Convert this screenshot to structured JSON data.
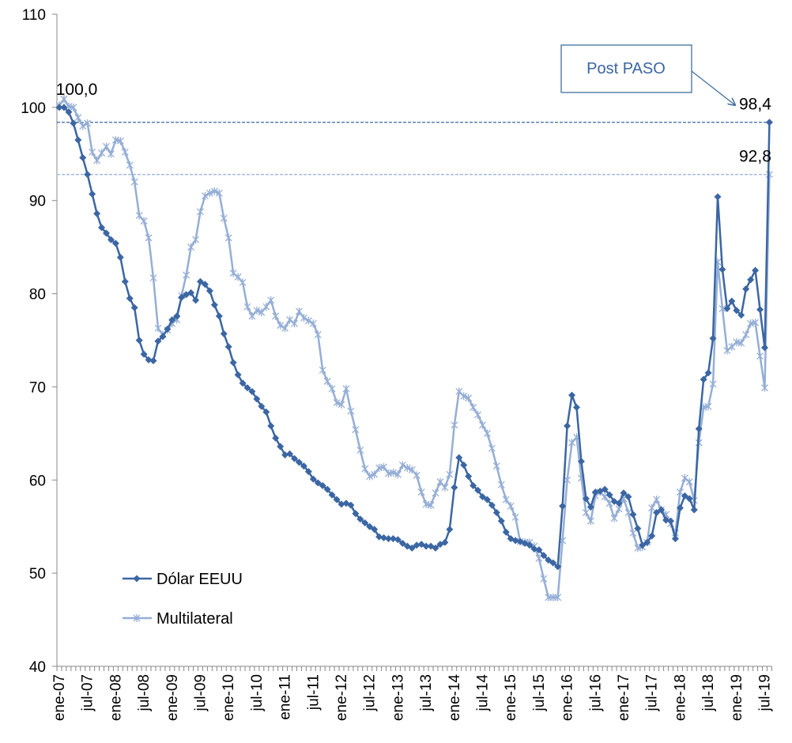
{
  "chart_data": {
    "type": "line",
    "annotation": "Post PASO",
    "categories": [
      "ene-07",
      null,
      null,
      null,
      null,
      null,
      "jul-07",
      null,
      null,
      null,
      null,
      null,
      "ene-08",
      null,
      null,
      null,
      null,
      null,
      "jul-08",
      null,
      null,
      null,
      null,
      null,
      "ene-09",
      null,
      null,
      null,
      null,
      null,
      "jul-09",
      null,
      null,
      null,
      null,
      null,
      "ene-10",
      null,
      null,
      null,
      null,
      null,
      "jul-10",
      null,
      null,
      null,
      null,
      null,
      "ene-11",
      null,
      null,
      null,
      null,
      null,
      "jul-11",
      null,
      null,
      null,
      null,
      null,
      "ene-12",
      null,
      null,
      null,
      null,
      null,
      "jul-12",
      null,
      null,
      null,
      null,
      null,
      "ene-13",
      null,
      null,
      null,
      null,
      null,
      "jul-13",
      null,
      null,
      null,
      null,
      null,
      "ene-14",
      null,
      null,
      null,
      null,
      null,
      "jul-14",
      null,
      null,
      null,
      null,
      null,
      "ene-15",
      null,
      null,
      null,
      null,
      null,
      "jul-15",
      null,
      null,
      null,
      null,
      null,
      "ene-16",
      null,
      null,
      null,
      null,
      null,
      "jul-16",
      null,
      null,
      null,
      null,
      null,
      "ene-17",
      null,
      null,
      null,
      null,
      null,
      "jul-17",
      null,
      null,
      null,
      null,
      null,
      "ene-18",
      null,
      null,
      null,
      null,
      null,
      "jul-18",
      null,
      null,
      null,
      null,
      null,
      "ene-19",
      null,
      null,
      null,
      null,
      null,
      "jul-19",
      null
    ],
    "series": [
      {
        "name": "Dólar EEUU",
        "color": "#3b66a3",
        "marker": "diamond",
        "values": [
          100.0,
          100.0,
          99.5,
          98.3,
          96.5,
          94.6,
          92.8,
          90.7,
          88.6,
          87.1,
          86.5,
          85.8,
          85.4,
          83.9,
          81.3,
          79.5,
          78.5,
          75.0,
          73.5,
          72.9,
          72.8,
          74.9,
          75.4,
          76.2,
          77.2,
          77.6,
          79.6,
          79.9,
          80.1,
          79.3,
          81.3,
          81.0,
          80.3,
          78.8,
          77.6,
          75.7,
          74.3,
          72.6,
          71.3,
          70.4,
          69.9,
          69.5,
          68.7,
          67.9,
          67.3,
          65.8,
          64.5,
          63.6,
          62.7,
          62.8,
          62.3,
          61.9,
          61.5,
          60.9,
          60.1,
          59.7,
          59.4,
          59.0,
          58.4,
          57.9,
          57.4,
          57.5,
          57.3,
          56.4,
          55.8,
          55.4,
          55.0,
          54.7,
          53.9,
          53.8,
          53.7,
          53.7,
          53.6,
          53.2,
          52.9,
          52.7,
          53.0,
          53.1,
          52.9,
          52.9,
          52.7,
          53.1,
          53.3,
          54.7,
          59.2,
          62.4,
          61.6,
          60.4,
          59.4,
          58.9,
          58.2,
          57.9,
          57.3,
          56.5,
          55.6,
          54.4,
          53.7,
          53.5,
          53.4,
          53.2,
          53.0,
          52.6,
          52.5,
          51.9,
          51.4,
          51.1,
          50.7,
          57.2,
          65.8,
          69.1,
          67.8,
          62.0,
          58.0,
          57.1,
          58.7,
          58.8,
          59.0,
          58.4,
          57.7,
          57.5,
          58.6,
          58.2,
          56.3,
          54.8,
          53.0,
          53.3,
          54.0,
          56.5,
          56.8,
          55.7,
          55.6,
          53.7,
          57.0,
          58.3,
          58.0,
          56.8,
          65.5,
          70.8,
          71.5,
          75.2,
          90.4,
          82.6,
          78.4,
          79.2,
          78.2,
          77.7,
          80.5,
          81.5,
          82.5,
          78.3,
          74.2,
          98.4
        ],
        "value_labels": {
          "0": "100,0",
          "151": "98,4"
        }
      },
      {
        "name": "Multilateral",
        "color": "#95aed6",
        "marker": "star",
        "values": [
          100.2,
          100.9,
          100.1,
          100.0,
          98.9,
          98.0,
          98.3,
          95.2,
          94.3,
          95.1,
          95.8,
          95.0,
          96.5,
          96.4,
          95.2,
          93.8,
          92.0,
          88.4,
          87.8,
          86.0,
          81.7,
          76.3,
          75.6,
          76.1,
          76.8,
          77.2,
          79.8,
          82.0,
          85.0,
          85.8,
          88.8,
          90.5,
          90.8,
          91.0,
          90.8,
          88.1,
          86.0,
          82.2,
          81.8,
          81.2,
          78.6,
          77.6,
          78.2,
          78.0,
          78.6,
          79.3,
          77.6,
          76.6,
          76.3,
          77.2,
          76.8,
          78.1,
          77.4,
          77.1,
          76.8,
          75.6,
          71.8,
          70.6,
          69.8,
          68.3,
          68.1,
          69.8,
          67.4,
          65.4,
          63.2,
          61.2,
          60.4,
          60.6,
          61.3,
          61.4,
          60.7,
          60.8,
          60.6,
          61.6,
          61.3,
          61.1,
          60.5,
          58.7,
          57.4,
          57.3,
          58.6,
          59.8,
          59.2,
          60.6,
          65.9,
          69.5,
          69.0,
          68.8,
          67.8,
          67.0,
          65.9,
          65.0,
          63.4,
          61.5,
          59.5,
          57.9,
          57.2,
          56.0,
          53.4,
          53.3,
          53.3,
          52.9,
          51.6,
          49.4,
          47.4,
          47.4,
          47.4,
          53.5,
          60.0,
          64.0,
          64.6,
          60.2,
          56.5,
          55.6,
          58.3,
          58.7,
          58.2,
          57.5,
          55.9,
          56.9,
          58.0,
          56.5,
          54.3,
          52.7,
          52.8,
          53.3,
          57.0,
          57.9,
          56.8,
          56.3,
          55.3,
          54.3,
          58.7,
          60.2,
          59.8,
          57.8,
          64.0,
          67.8,
          67.9,
          70.3,
          83.4,
          78.4,
          73.9,
          74.3,
          74.8,
          74.7,
          75.6,
          76.8,
          76.9,
          73.3,
          69.9,
          92.8
        ],
        "value_labels": {
          "151": "92,8"
        }
      }
    ],
    "ylim": [
      40,
      110
    ],
    "yticks": [
      40,
      50,
      60,
      70,
      80,
      90,
      100,
      110
    ],
    "grid": false,
    "legend": "lower left"
  }
}
